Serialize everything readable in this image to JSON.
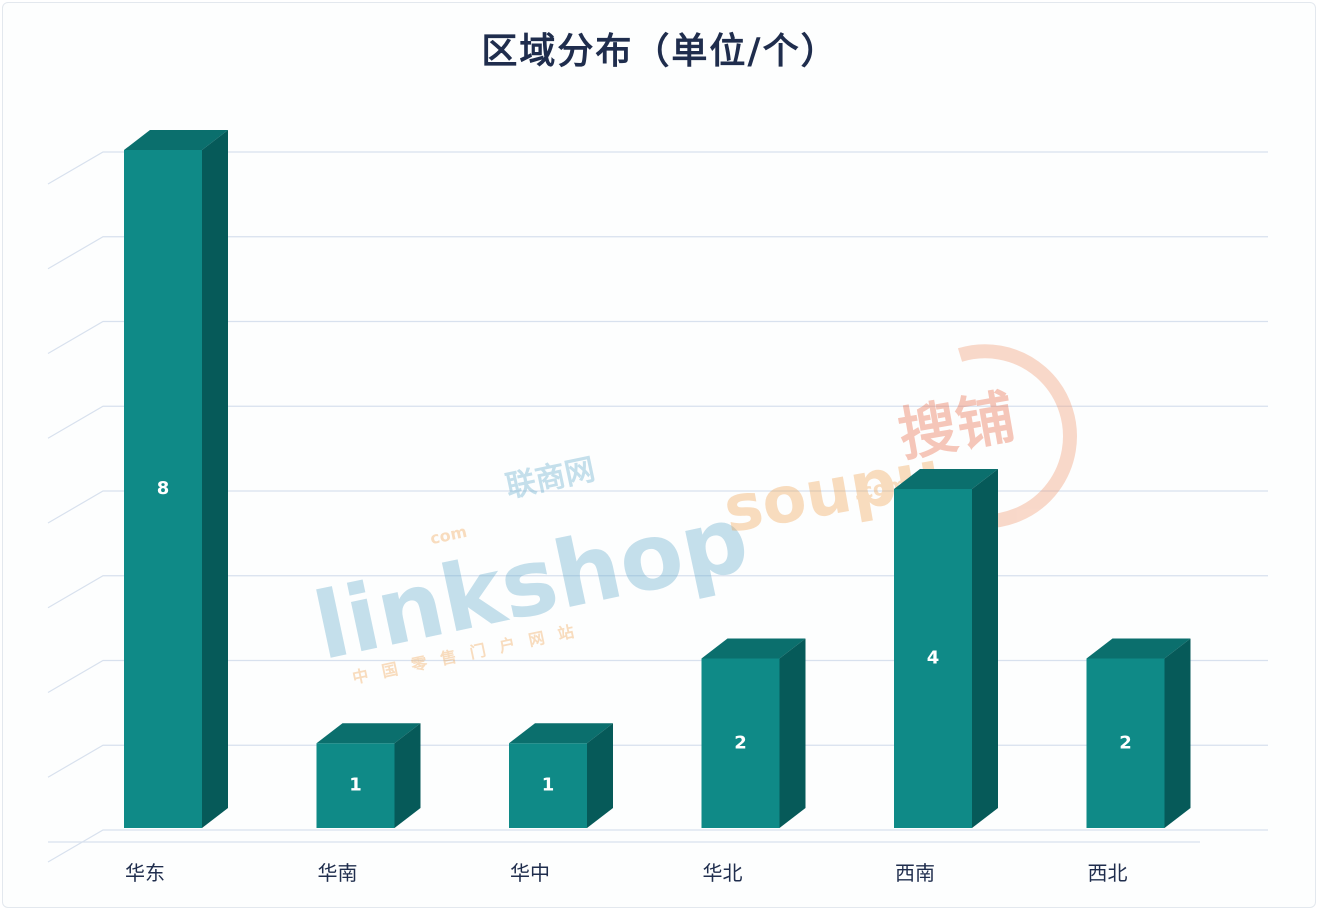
{
  "chart_data": {
    "type": "bar",
    "title": "区域分布（单位/个）",
    "categories": [
      "华东",
      "华南",
      "华中",
      "华北",
      "西南",
      "西北"
    ],
    "values": [
      8,
      1,
      1,
      2,
      4,
      2
    ],
    "ylim": [
      0,
      8
    ],
    "grid": true,
    "bar_color": "#0f8a87",
    "bar_top_color": "#0b6f6d",
    "bar_side_color": "#065a59",
    "value_labels": [
      "8",
      "1",
      "1",
      "2",
      "4",
      "2"
    ]
  },
  "watermarks": {
    "linkshop": {
      "brand": "linkshop",
      "cn": "联商网",
      "com": "com",
      "tagline": "中国零售门户网站"
    },
    "soupu": {
      "brand": "soupu",
      "cn": "搜铺",
      "com": ".com"
    }
  }
}
